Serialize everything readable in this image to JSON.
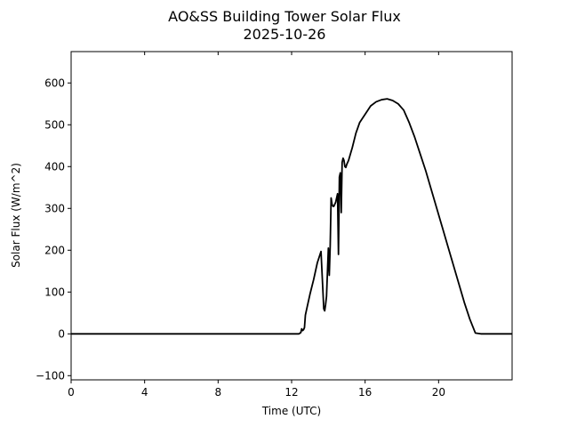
{
  "chart_data": {
    "type": "line",
    "title": "AO&SS Building Tower Solar Flux",
    "subtitle": "2025-10-26",
    "xlabel": "Time (UTC)",
    "ylabel": "Solar Flux (W/m^2)",
    "xlim": [
      0,
      24
    ],
    "ylim": [
      -110,
      675
    ],
    "xticks": [
      0,
      4,
      8,
      12,
      16,
      20
    ],
    "yticks": [
      -100,
      0,
      100,
      200,
      300,
      400,
      500,
      600
    ],
    "grid": false,
    "legend": "none",
    "line_color": "#000000",
    "series": [
      {
        "x": [
          0,
          6,
          12,
          12.4,
          12.5,
          12.55,
          12.6,
          12.65,
          12.7,
          12.75,
          12.8,
          12.85,
          13.0,
          13.2,
          13.4,
          13.6,
          13.75,
          13.8,
          13.85,
          13.9,
          14.0,
          14.05,
          14.1,
          14.15,
          14.2,
          14.25,
          14.3,
          14.4,
          14.5,
          14.55,
          14.6,
          14.65,
          14.7,
          14.75,
          14.8,
          14.85,
          14.9,
          14.95,
          15.0,
          15.1,
          15.2,
          15.3,
          15.5,
          15.7,
          16.0,
          16.3,
          16.6,
          16.9,
          17.2,
          17.5,
          17.8,
          18.1,
          18.4,
          18.7,
          19.0,
          19.3,
          19.6,
          19.9,
          20.2,
          20.5,
          20.8,
          21.1,
          21.4,
          21.7,
          22.0,
          22.3,
          22.6,
          22.9,
          23.0,
          23.5,
          24.0
        ],
        "y": [
          0,
          0,
          0,
          0,
          3,
          12,
          8,
          10,
          15,
          45,
          55,
          65,
          95,
          130,
          170,
          197,
          60,
          55,
          70,
          90,
          205,
          140,
          210,
          325,
          310,
          305,
          305,
          315,
          335,
          190,
          375,
          385,
          290,
          410,
          420,
          415,
          400,
          398,
          405,
          415,
          430,
          445,
          480,
          505,
          525,
          545,
          555,
          560,
          562,
          558,
          550,
          535,
          505,
          470,
          430,
          390,
          345,
          300,
          255,
          210,
          165,
          120,
          75,
          35,
          2,
          0,
          0,
          0,
          0,
          0,
          0
        ]
      }
    ]
  }
}
